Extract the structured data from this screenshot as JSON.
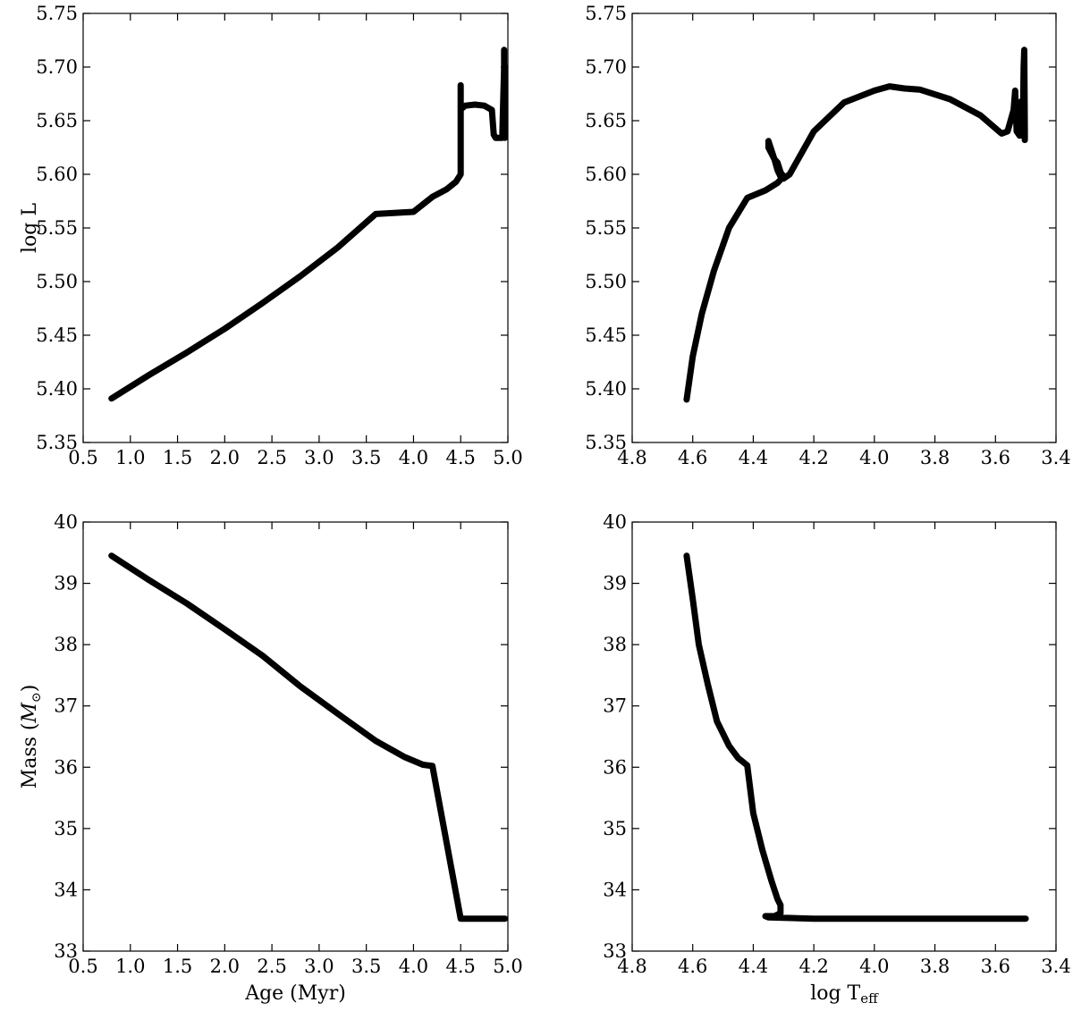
{
  "chart_data": [
    {
      "id": "lum-age",
      "type": "line",
      "xlabel": "",
      "ylabel": "log L",
      "xlim": [
        0.5,
        5.0
      ],
      "ylim": [
        5.35,
        5.75
      ],
      "xticks": [
        "0.5",
        "1.0",
        "1.5",
        "2.0",
        "2.5",
        "3.0",
        "3.5",
        "4.0",
        "4.5",
        "5.0"
      ],
      "yticks": [
        "5.35",
        "5.40",
        "5.45",
        "5.50",
        "5.55",
        "5.60",
        "5.65",
        "5.70",
        "5.75"
      ],
      "series": [
        {
          "x": [
            0.8,
            1.2,
            1.6,
            2.0,
            2.4,
            2.8,
            3.2,
            3.6,
            4.0,
            4.2,
            4.35,
            4.45,
            4.5,
            4.5,
            4.5,
            4.5,
            4.52,
            4.55,
            4.65,
            4.75,
            4.83,
            4.85,
            4.87,
            4.9,
            4.94,
            4.96,
            4.96,
            4.96,
            4.97,
            4.97
          ],
          "y": [
            5.391,
            5.413,
            5.434,
            5.456,
            5.48,
            5.505,
            5.532,
            5.563,
            5.565,
            5.579,
            5.586,
            5.593,
            5.6,
            5.64,
            5.683,
            5.66,
            5.662,
            5.664,
            5.665,
            5.664,
            5.66,
            5.637,
            5.634,
            5.634,
            5.634,
            5.7,
            5.716,
            5.64,
            5.634,
            5.7
          ]
        }
      ]
    },
    {
      "id": "lum-teff",
      "type": "line",
      "xlabel": "",
      "ylabel": "",
      "xlim": [
        4.8,
        3.4
      ],
      "ylim": [
        5.35,
        5.75
      ],
      "xticks": [
        "4.8",
        "4.6",
        "4.4",
        "4.2",
        "4.0",
        "3.8",
        "3.6",
        "3.4"
      ],
      "yticks": [
        "5.35",
        "5.40",
        "5.45",
        "5.50",
        "5.55",
        "5.60",
        "5.65",
        "5.70",
        "5.75"
      ],
      "series": [
        {
          "x": [
            4.62,
            4.6,
            4.57,
            4.53,
            4.48,
            4.42,
            4.36,
            4.32,
            4.3,
            4.31,
            4.32,
            4.33,
            4.35,
            4.35,
            4.33,
            4.32,
            4.31,
            4.3,
            4.28,
            4.2,
            4.1,
            4.0,
            3.95,
            3.9,
            3.85,
            3.75,
            3.65,
            3.58,
            3.56,
            3.54,
            3.535,
            3.53,
            3.52,
            3.515,
            3.51,
            3.507,
            3.505,
            3.503,
            3.503,
            3.505
          ],
          "y": [
            5.39,
            5.43,
            5.47,
            5.51,
            5.55,
            5.578,
            5.585,
            5.592,
            5.598,
            5.602,
            5.611,
            5.614,
            5.625,
            5.631,
            5.614,
            5.604,
            5.598,
            5.596,
            5.6,
            5.64,
            5.667,
            5.678,
            5.682,
            5.68,
            5.679,
            5.67,
            5.655,
            5.638,
            5.64,
            5.66,
            5.678,
            5.64,
            5.636,
            5.668,
            5.636,
            5.7,
            5.716,
            5.64,
            5.632,
            5.7
          ]
        }
      ]
    },
    {
      "id": "mass-age",
      "type": "line",
      "xlabel": "Age (Myr)",
      "ylabel": "Mass",
      "ylabel_unit": "M",
      "ylabel_unit_sub": "⊙",
      "xlim": [
        0.5,
        5.0
      ],
      "ylim": [
        33,
        40
      ],
      "xticks": [
        "0.5",
        "1.0",
        "1.5",
        "2.0",
        "2.5",
        "3.0",
        "3.5",
        "4.0",
        "4.5",
        "5.0"
      ],
      "yticks": [
        "33",
        "34",
        "35",
        "36",
        "37",
        "38",
        "39",
        "40"
      ],
      "series": [
        {
          "x": [
            0.8,
            1.2,
            1.6,
            2.0,
            2.4,
            2.8,
            3.2,
            3.6,
            3.9,
            4.1,
            4.2,
            4.5,
            4.7,
            4.97
          ],
          "y": [
            39.45,
            39.05,
            38.67,
            38.25,
            37.82,
            37.32,
            36.87,
            36.43,
            36.17,
            36.04,
            36.02,
            33.53,
            33.53,
            33.53
          ]
        }
      ]
    },
    {
      "id": "mass-teff",
      "type": "line",
      "xlabel": "log T",
      "xlabel_sub": "eff",
      "ylabel": "",
      "xlim": [
        4.8,
        3.4
      ],
      "ylim": [
        33,
        40
      ],
      "xticks": [
        "4.8",
        "4.6",
        "4.4",
        "4.2",
        "4.0",
        "3.8",
        "3.6",
        "3.4"
      ],
      "yticks": [
        "33",
        "34",
        "35",
        "36",
        "37",
        "38",
        "39",
        "40"
      ],
      "series": [
        {
          "x": [
            4.62,
            4.6,
            4.58,
            4.55,
            4.52,
            4.48,
            4.45,
            4.42,
            4.4,
            4.37,
            4.34,
            4.32,
            4.31,
            4.31,
            4.33,
            4.36,
            4.35,
            4.2,
            4.0,
            3.8,
            3.6,
            3.5
          ],
          "y": [
            39.45,
            38.75,
            38.0,
            37.35,
            36.75,
            36.35,
            36.15,
            36.03,
            35.25,
            34.65,
            34.15,
            33.85,
            33.75,
            33.62,
            33.57,
            33.57,
            33.55,
            33.53,
            33.53,
            33.53,
            33.53,
            33.53
          ]
        }
      ]
    }
  ]
}
